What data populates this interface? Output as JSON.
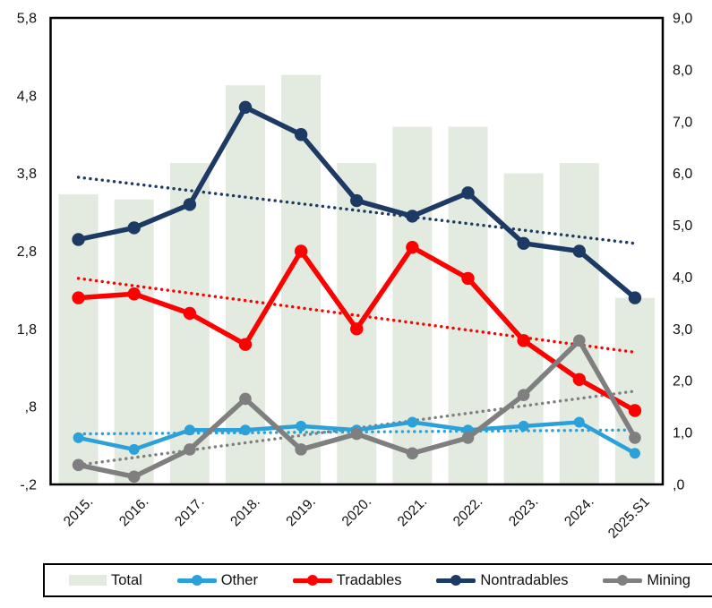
{
  "chart_data": {
    "type": "combo-bar-line",
    "categories": [
      "2015.",
      "2016.",
      "2017.",
      "2018.",
      "2019.",
      "2020.",
      "2021.",
      "2022.",
      "2023.",
      "2024.",
      "2025.S1"
    ],
    "bar_series": {
      "name": "Total",
      "axis": "right",
      "color": "#e3ebe1",
      "values": [
        5.6,
        5.5,
        6.2,
        7.7,
        7.9,
        6.2,
        6.9,
        6.9,
        6.0,
        6.2,
        3.6
      ]
    },
    "line_series": [
      {
        "name": "Other",
        "axis": "left",
        "color": "#2ba0d9",
        "values": [
          0.4,
          0.25,
          0.5,
          0.5,
          0.55,
          0.5,
          0.6,
          0.5,
          0.55,
          0.6,
          0.2
        ],
        "trend": [
          0.45,
          0.5
        ],
        "line_width": 4.5,
        "marker_r": 6
      },
      {
        "name": "Tradables",
        "axis": "left",
        "color": "#fe0000",
        "values": [
          2.2,
          2.25,
          2.0,
          1.6,
          2.8,
          1.8,
          2.85,
          2.45,
          1.65,
          1.15,
          0.75
        ],
        "trend": [
          2.45,
          1.5
        ],
        "line_width": 5.5,
        "marker_r": 7.2
      },
      {
        "name": "Nontradables",
        "axis": "left",
        "color": "#1c3a63",
        "values": [
          2.95,
          3.1,
          3.4,
          4.65,
          4.3,
          3.45,
          3.25,
          3.55,
          2.9,
          2.8,
          2.2
        ],
        "trend": [
          3.75,
          2.9
        ],
        "line_width": 5.5,
        "marker_r": 7.2
      },
      {
        "name": "Mining",
        "axis": "left",
        "color": "#7f7f7f",
        "values": [
          0.05,
          -0.1,
          0.25,
          0.9,
          0.25,
          0.45,
          0.2,
          0.4,
          0.95,
          1.65,
          0.4
        ],
        "trend": [
          0.05,
          1.0
        ],
        "line_width": 5.5,
        "marker_r": 6.8
      }
    ],
    "left_axis": {
      "min": -0.2,
      "max": 5.8,
      "tick_values": [
        5.8,
        4.8,
        3.8,
        2.8,
        1.8,
        0.8,
        -0.2
      ],
      "tick_labels": [
        "5,8",
        "4,8",
        "3,8",
        "2,8",
        "1,8",
        ",8",
        "-,2"
      ]
    },
    "right_axis": {
      "min": 0.0,
      "max": 9.0,
      "tick_values": [
        9,
        8,
        7,
        6,
        5,
        4,
        3,
        2,
        1,
        0
      ],
      "tick_labels": [
        "9,0",
        "8,0",
        "7,0",
        "6,0",
        "5,0",
        "4,0",
        "3,0",
        "2,0",
        "1,0",
        ",0"
      ]
    },
    "grid": "off",
    "legend_position": "bottom",
    "legend": [
      {
        "label": "Total",
        "kind": "rect",
        "color": "#e3ebe1"
      },
      {
        "label": "Other",
        "kind": "line-dot",
        "color": "#2ba0d9"
      },
      {
        "label": "Tradables",
        "kind": "line-dot",
        "color": "#fe0000"
      },
      {
        "label": "Nontradables",
        "kind": "line-dot",
        "color": "#1c3a63"
      },
      {
        "label": "Mining",
        "kind": "line-dot",
        "color": "#7f7f7f"
      }
    ],
    "plot": {
      "frame_color": "#000000",
      "background": "#ffffff",
      "text_color": "#111111"
    }
  }
}
